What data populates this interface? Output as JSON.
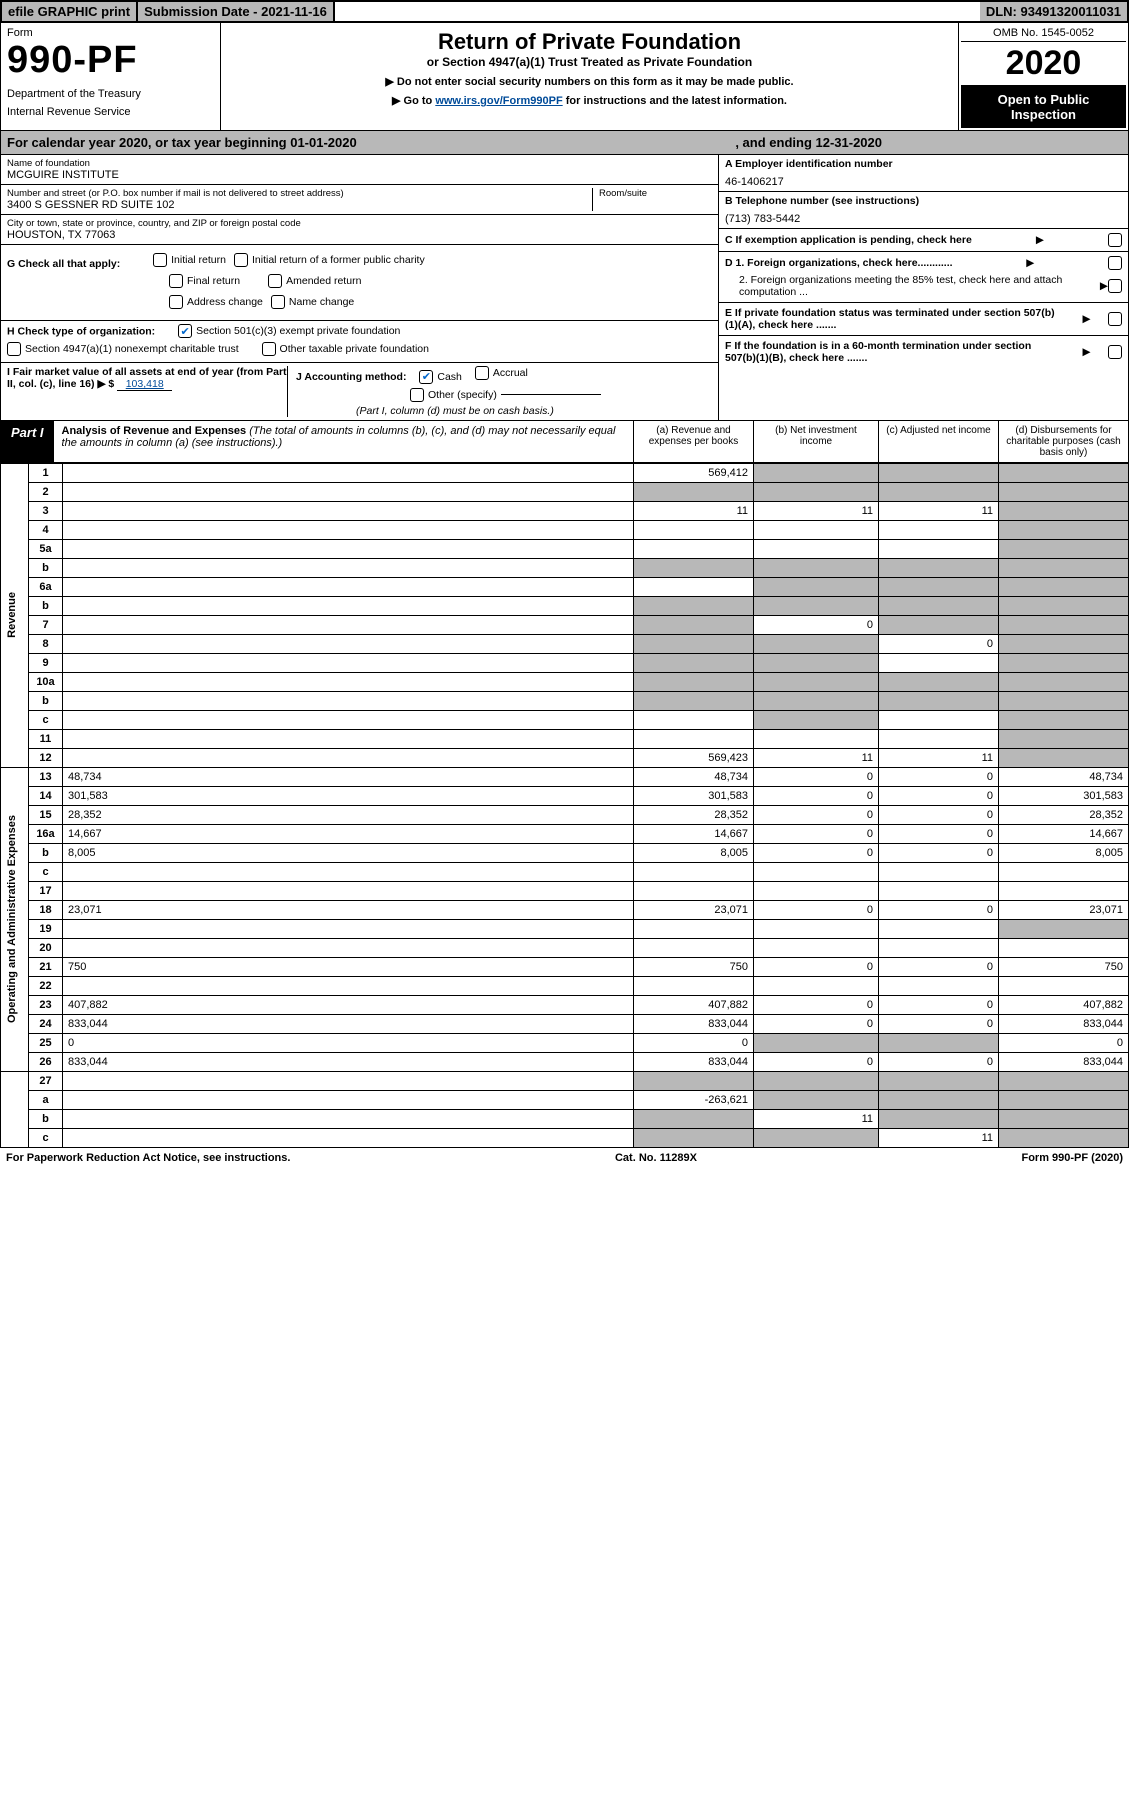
{
  "top": {
    "efile": "efile GRAPHIC print",
    "submission": "Submission Date - 2021-11-16",
    "dln": "DLN: 93491320011031"
  },
  "header": {
    "form_word": "Form",
    "form_number": "990-PF",
    "dept1": "Department of the Treasury",
    "dept2": "Internal Revenue Service",
    "title": "Return of Private Foundation",
    "subtitle": "or Section 4947(a)(1) Trust Treated as Private Foundation",
    "instr1": "▶ Do not enter social security numbers on this form as it may be made public.",
    "instr2a": "▶ Go to ",
    "instr2b": "www.irs.gov/Form990PF",
    "instr2c": " for instructions and the latest information.",
    "omb": "OMB No. 1545-0052",
    "year": "2020",
    "open": "Open to Public Inspection"
  },
  "cal": {
    "text1": "For calendar year 2020, or tax year beginning 01-01-2020",
    "text2": ", and ending 12-31-2020"
  },
  "info": {
    "name_label": "Name of foundation",
    "name": "MCGUIRE INSTITUTE",
    "addr_label": "Number and street (or P.O. box number if mail is not delivered to street address)",
    "addr": "3400 S GESSNER RD SUITE 102",
    "room_label": "Room/suite",
    "city_label": "City or town, state or province, country, and ZIP or foreign postal code",
    "city": "HOUSTON, TX  77063",
    "a_label": "A Employer identification number",
    "a_val": "46-1406217",
    "b_label": "B Telephone number (see instructions)",
    "b_val": "(713) 783-5442",
    "c_label": "C If exemption application is pending, check here",
    "d1": "D 1. Foreign organizations, check here............",
    "d2": "2. Foreign organizations meeting the 85% test, check here and attach computation ...",
    "e_label": "E  If private foundation status was terminated under section 507(b)(1)(A), check here .......",
    "f_label": "F  If the foundation is in a 60-month termination under section 507(b)(1)(B), check here .......",
    "g_label": "G Check all that apply:",
    "g_opts": [
      "Initial return",
      "Initial return of a former public charity",
      "Final return",
      "Amended return",
      "Address change",
      "Name change"
    ],
    "h_label": "H Check type of organization:",
    "h1": "Section 501(c)(3) exempt private foundation",
    "h2": "Section 4947(a)(1) nonexempt charitable trust",
    "h3": "Other taxable private foundation",
    "i_label": "I Fair market value of all assets at end of year (from Part II, col. (c), line 16) ▶ $",
    "i_val": "103,418",
    "j_label": "J Accounting method:",
    "j1": "Cash",
    "j2": "Accrual",
    "j3": "Other (specify)",
    "j_note": "(Part I, column (d) must be on cash basis.)"
  },
  "part1": {
    "badge": "Part I",
    "title": "Analysis of Revenue and Expenses",
    "note": " (The total of amounts in columns (b), (c), and (d) may not necessarily equal the amounts in column (a) (see instructions).)",
    "col_a": "(a)   Revenue and expenses per books",
    "col_b": "(b)  Net investment income",
    "col_c": "(c)  Adjusted net income",
    "col_d": "(d)  Disbursements for charitable purposes (cash basis only)"
  },
  "sections": {
    "revenue": "Revenue",
    "expenses": "Operating and Administrative Expenses"
  },
  "rows_revenue": [
    {
      "n": "1",
      "d": "",
      "a": "569,412",
      "b": "",
      "c": "",
      "gb": true,
      "gc": true,
      "gd": true
    },
    {
      "n": "2",
      "d": "",
      "a": "",
      "b": "",
      "c": "",
      "ga": true,
      "gb": true,
      "gc": true,
      "gd": true
    },
    {
      "n": "3",
      "d": "",
      "a": "11",
      "b": "11",
      "c": "11",
      "gd": true
    },
    {
      "n": "4",
      "d": "",
      "a": "",
      "b": "",
      "c": "",
      "gd": true
    },
    {
      "n": "5a",
      "d": "",
      "a": "",
      "b": "",
      "c": "",
      "gd": true
    },
    {
      "n": "b",
      "d": "",
      "a": "",
      "b": "",
      "c": "",
      "ga": true,
      "gb": true,
      "gc": true,
      "gd": true
    },
    {
      "n": "6a",
      "d": "",
      "a": "",
      "b": "",
      "c": "",
      "gb": true,
      "gc": true,
      "gd": true
    },
    {
      "n": "b",
      "d": "",
      "a": "",
      "b": "",
      "c": "",
      "ga": true,
      "gb": true,
      "gc": true,
      "gd": true
    },
    {
      "n": "7",
      "d": "",
      "a": "",
      "b": "0",
      "c": "",
      "ga": true,
      "gc": true,
      "gd": true
    },
    {
      "n": "8",
      "d": "",
      "a": "",
      "b": "",
      "c": "0",
      "ga": true,
      "gb": true,
      "gd": true
    },
    {
      "n": "9",
      "d": "",
      "a": "",
      "b": "",
      "c": "",
      "ga": true,
      "gb": true,
      "gd": true
    },
    {
      "n": "10a",
      "d": "",
      "a": "",
      "b": "",
      "c": "",
      "ga": true,
      "gb": true,
      "gc": true,
      "gd": true
    },
    {
      "n": "b",
      "d": "",
      "a": "",
      "b": "",
      "c": "",
      "ga": true,
      "gb": true,
      "gc": true,
      "gd": true
    },
    {
      "n": "c",
      "d": "",
      "a": "",
      "b": "",
      "c": "",
      "gb": true,
      "gd": true
    },
    {
      "n": "11",
      "d": "",
      "a": "",
      "b": "",
      "c": "",
      "gd": true
    },
    {
      "n": "12",
      "d": "",
      "a": "569,423",
      "b": "11",
      "c": "11",
      "gd": true
    }
  ],
  "rows_expenses": [
    {
      "n": "13",
      "d": "48,734",
      "a": "48,734",
      "b": "0",
      "c": "0"
    },
    {
      "n": "14",
      "d": "301,583",
      "a": "301,583",
      "b": "0",
      "c": "0"
    },
    {
      "n": "15",
      "d": "28,352",
      "a": "28,352",
      "b": "0",
      "c": "0"
    },
    {
      "n": "16a",
      "d": "14,667",
      "a": "14,667",
      "b": "0",
      "c": "0"
    },
    {
      "n": "b",
      "d": "8,005",
      "a": "8,005",
      "b": "0",
      "c": "0"
    },
    {
      "n": "c",
      "d": "",
      "a": "",
      "b": "",
      "c": ""
    },
    {
      "n": "17",
      "d": "",
      "a": "",
      "b": "",
      "c": ""
    },
    {
      "n": "18",
      "d": "23,071",
      "a": "23,071",
      "b": "0",
      "c": "0"
    },
    {
      "n": "19",
      "d": "",
      "a": "",
      "b": "",
      "c": "",
      "gd": true
    },
    {
      "n": "20",
      "d": "",
      "a": "",
      "b": "",
      "c": ""
    },
    {
      "n": "21",
      "d": "750",
      "a": "750",
      "b": "0",
      "c": "0"
    },
    {
      "n": "22",
      "d": "",
      "a": "",
      "b": "",
      "c": ""
    },
    {
      "n": "23",
      "d": "407,882",
      "a": "407,882",
      "b": "0",
      "c": "0"
    },
    {
      "n": "24",
      "d": "833,044",
      "a": "833,044",
      "b": "0",
      "c": "0"
    },
    {
      "n": "25",
      "d": "0",
      "a": "0",
      "b": "",
      "c": "",
      "gb": true,
      "gc": true
    },
    {
      "n": "26",
      "d": "833,044",
      "a": "833,044",
      "b": "0",
      "c": "0"
    }
  ],
  "rows_bottom": [
    {
      "n": "27",
      "d": "",
      "a": "",
      "b": "",
      "c": "",
      "ga": true,
      "gb": true,
      "gc": true,
      "gd": true
    },
    {
      "n": "a",
      "d": "",
      "a": "-263,621",
      "b": "",
      "c": "",
      "gb": true,
      "gc": true,
      "gd": true
    },
    {
      "n": "b",
      "d": "",
      "a": "",
      "b": "11",
      "c": "",
      "ga": true,
      "gc": true,
      "gd": true
    },
    {
      "n": "c",
      "d": "",
      "a": "",
      "b": "",
      "c": "11",
      "ga": true,
      "gb": true,
      "gd": true
    }
  ],
  "footer": {
    "left": "For Paperwork Reduction Act Notice, see instructions.",
    "mid": "Cat. No. 11289X",
    "right": "Form 990-PF (2020)"
  }
}
